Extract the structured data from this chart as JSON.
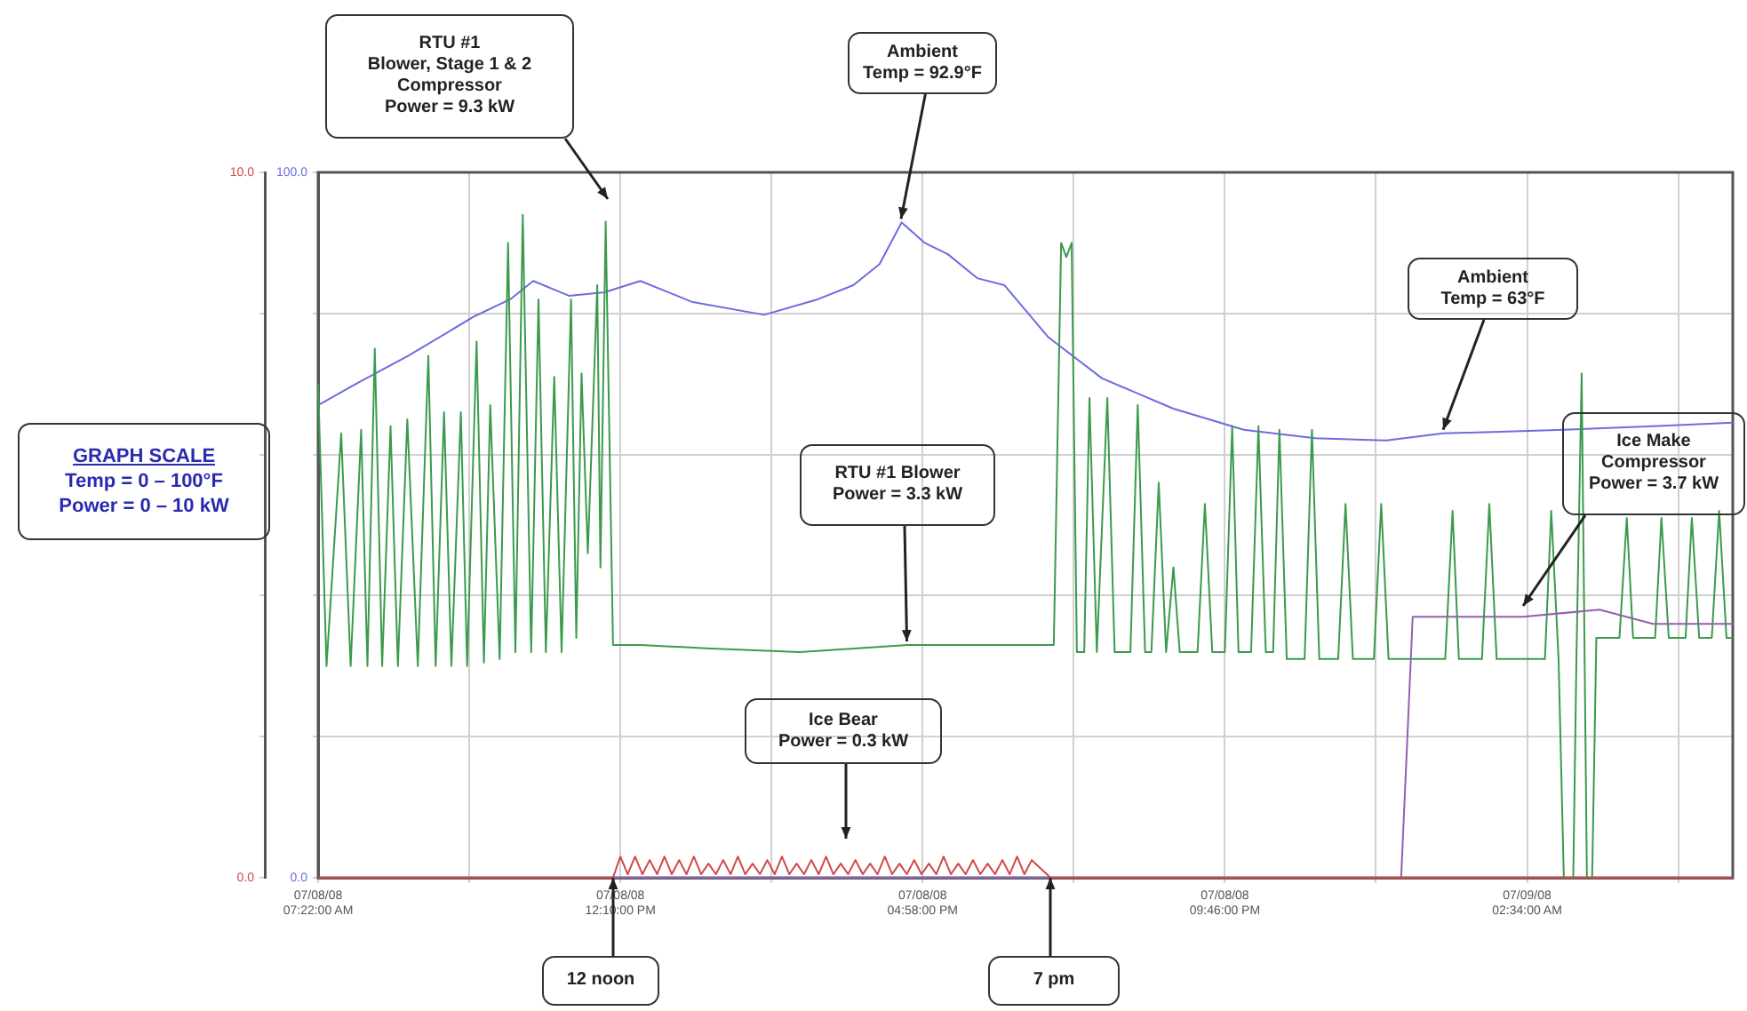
{
  "chart_data": {
    "type": "line",
    "xlim": [
      "--07-08T07:22",
      "--07-09T05:50"
    ],
    "xticks": [
      {
        "value": "--07-08T07:22",
        "label": "07/08/08\n07:22:00 AM"
      },
      {
        "value": "--07-08T09:46",
        "label": null
      },
      {
        "value": "--07-08T12:10",
        "label": "07/08/08\n12:10:00 PM"
      },
      {
        "value": "--07-08T14:34",
        "label": null
      },
      {
        "value": "--07-08T16:58",
        "label": "07/08/08\n04:58:00 PM"
      },
      {
        "value": "--07-08T19:22",
        "label": null
      },
      {
        "value": "--07-08T21:46",
        "label": "07/08/08\n09:46:00 PM"
      },
      {
        "value": "--07-09T00:10",
        "label": null
      },
      {
        "value": "--07-09T02:34",
        "label": "07/09/08\n02:34:00 AM"
      },
      {
        "value": "--07-09T04:58",
        "label": null
      }
    ],
    "ylim": [
      0,
      100
    ],
    "yticks": [
      {
        "value": 0,
        "label": "0.0"
      },
      {
        "value": 20,
        "label": null
      },
      {
        "value": 40,
        "label": null
      },
      {
        "value": 60,
        "label": null
      },
      {
        "value": 80,
        "label": null
      },
      {
        "value": 100,
        "label": "100.0"
      }
    ],
    "y2lim": [
      0,
      10
    ],
    "y2ticks": [
      {
        "value": 0,
        "label": "0.0"
      },
      {
        "value": 2,
        "label": null
      },
      {
        "value": 4,
        "label": null
      },
      {
        "value": 6,
        "label": null
      },
      {
        "value": 8,
        "label": null
      },
      {
        "value": 10,
        "label": "10.0"
      }
    ],
    "grid": true,
    "legend": false,
    "marker": "none",
    "line_style": "solid",
    "series": [
      {
        "color": "#d04848",
        "axis": "y2",
        "x": [
          "--07-08T07:22",
          "--07-08T12:03",
          "--07-08T12:10",
          "--07-08T12:17",
          "--07-08T12:24",
          "--07-08T12:31",
          "--07-08T12:38",
          "--07-08T12:45",
          "--07-08T12:52",
          "--07-08T12:59",
          "--07-08T13:06",
          "--07-08T13:13",
          "--07-08T13:20",
          "--07-08T13:27",
          "--07-08T13:34",
          "--07-08T13:41",
          "--07-08T13:48",
          "--07-08T13:55",
          "--07-08T14:02",
          "--07-08T14:09",
          "--07-08T14:16",
          "--07-08T14:23",
          "--07-08T14:30",
          "--07-08T14:37",
          "--07-08T14:44",
          "--07-08T14:51",
          "--07-08T14:58",
          "--07-08T15:05",
          "--07-08T15:12",
          "--07-08T15:19",
          "--07-08T15:26",
          "--07-08T15:33",
          "--07-08T15:40",
          "--07-08T15:47",
          "--07-08T15:54",
          "--07-08T16:01",
          "--07-08T16:08",
          "--07-08T16:15",
          "--07-08T16:22",
          "--07-08T16:29",
          "--07-08T16:36",
          "--07-08T16:43",
          "--07-08T16:50",
          "--07-08T16:57",
          "--07-08T17:04",
          "--07-08T17:11",
          "--07-08T17:18",
          "--07-08T17:25",
          "--07-08T17:32",
          "--07-08T17:39",
          "--07-08T17:46",
          "--07-08T17:53",
          "--07-08T18:00",
          "--07-08T18:07",
          "--07-08T18:14",
          "--07-08T18:21",
          "--07-08T18:28",
          "--07-08T18:35",
          "--07-08T18:42",
          "--07-08T19:00",
          "--07-09T05:50"
        ],
        "values": [
          0,
          0,
          0.3,
          0.05,
          0.3,
          0.05,
          0.25,
          0.05,
          0.3,
          0.05,
          0.25,
          0.05,
          0.3,
          0.05,
          0.2,
          0.05,
          0.25,
          0.05,
          0.3,
          0.05,
          0.2,
          0.05,
          0.25,
          0.05,
          0.3,
          0.05,
          0.2,
          0.05,
          0.25,
          0.05,
          0.3,
          0.05,
          0.2,
          0.05,
          0.25,
          0.05,
          0.2,
          0.05,
          0.3,
          0.05,
          0.2,
          0.05,
          0.25,
          0.05,
          0.2,
          0.05,
          0.3,
          0.05,
          0.2,
          0.05,
          0.25,
          0.05,
          0.2,
          0.05,
          0.25,
          0.05,
          0.3,
          0.05,
          0.25,
          0,
          0
        ]
      },
      {
        "color": "#9060b0",
        "axis": "y2",
        "x": [
          "--07-08T07:22",
          "--07-09T00:34",
          "--07-09T00:45",
          "--07-09T02:30",
          "--07-09T03:43",
          "--07-09T04:34",
          "--07-09T05:50"
        ],
        "values": [
          0,
          0,
          3.7,
          3.7,
          3.8,
          3.6,
          3.6
        ]
      },
      {
        "color": "#3c9a4c",
        "axis": "y2",
        "x": [
          "--07-08T07:22",
          "--07-08T07:30",
          "--07-08T07:44",
          "--07-08T07:53",
          "--07-08T08:03",
          "--07-08T08:09",
          "--07-08T08:16",
          "--07-08T08:23",
          "--07-08T08:31",
          "--07-08T08:38",
          "--07-08T08:47",
          "--07-08T08:57",
          "--07-08T09:07",
          "--07-08T09:14",
          "--07-08T09:22",
          "--07-08T09:29",
          "--07-08T09:38",
          "--07-08T09:44",
          "--07-08T09:53",
          "--07-08T10:00",
          "--07-08T10:06",
          "--07-08T10:15",
          "--07-08T10:23",
          "--07-08T10:30",
          "--07-08T10:37",
          "--07-08T10:45",
          "--07-08T10:52",
          "--07-08T10:59",
          "--07-08T11:07",
          "--07-08T11:14",
          "--07-08T11:23",
          "--07-08T11:28",
          "--07-08T11:33",
          "--07-08T11:39",
          "--07-08T11:48",
          "--07-08T11:51",
          "--07-08T11:56",
          "--07-08T12:03",
          "--07-08T12:29",
          "--07-08T13:36",
          "--07-08T15:01",
          "--07-08T16:43",
          "--07-08T18:07",
          "--07-08T19:03",
          "--07-08T19:10",
          "--07-08T19:15",
          "--07-08T19:20",
          "--07-08T19:25",
          "--07-08T19:32",
          "--07-08T19:37",
          "--07-08T19:44",
          "--07-08T19:54",
          "--07-08T20:01",
          "--07-08T20:16",
          "--07-08T20:23",
          "--07-08T20:30",
          "--07-08T20:36",
          "--07-08T20:43",
          "--07-08T20:50",
          "--07-08T20:57",
          "--07-08T21:03",
          "--07-08T21:20",
          "--07-08T21:27",
          "--07-08T21:34",
          "--07-08T21:46",
          "--07-08T21:53",
          "--07-08T21:59",
          "--07-08T22:11",
          "--07-08T22:18",
          "--07-08T22:25",
          "--07-08T22:32",
          "--07-08T22:38",
          "--07-08T22:45",
          "--07-08T23:02",
          "--07-08T23:09",
          "--07-08T23:16",
          "--07-08T23:34",
          "--07-08T23:41",
          "--07-08T23:48",
          "--07-09T00:08",
          "--07-09T00:15",
          "--07-09T00:22",
          "--07-09T01:16",
          "--07-09T01:23",
          "--07-09T01:29",
          "--07-09T01:51",
          "--07-09T01:58",
          "--07-09T02:05",
          "--07-09T02:51",
          "--07-09T02:57",
          "--07-09T03:04",
          "--07-09T03:09",
          "--07-09T03:18",
          "--07-09T03:21",
          "--07-09T03:26",
          "--07-09T03:31",
          "--07-09T03:36",
          "--07-09T03:40",
          "--07-09T04:02",
          "--07-09T04:09",
          "--07-09T04:15",
          "--07-09T04:36",
          "--07-09T04:42",
          "--07-09T04:49",
          "--07-09T05:05",
          "--07-09T05:11",
          "--07-09T05:18",
          "--07-09T05:30",
          "--07-09T05:37",
          "--07-09T05:44",
          "--07-09T05:50"
        ],
        "values": [
          7.0,
          3.0,
          6.3,
          3.0,
          6.35,
          3.0,
          7.5,
          3.0,
          6.4,
          3.0,
          6.5,
          3.0,
          7.4,
          3.0,
          6.6,
          3.0,
          6.6,
          3.0,
          7.6,
          3.05,
          6.7,
          3.1,
          9.0,
          3.2,
          9.4,
          3.2,
          8.2,
          3.2,
          7.1,
          3.2,
          8.2,
          3.4,
          7.15,
          4.6,
          8.4,
          4.4,
          9.3,
          3.3,
          3.3,
          3.25,
          3.2,
          3.3,
          3.3,
          3.3,
          9.0,
          8.8,
          9.0,
          3.2,
          3.2,
          6.8,
          3.2,
          6.8,
          3.2,
          3.2,
          6.7,
          3.2,
          3.2,
          5.6,
          3.2,
          4.4,
          3.2,
          3.2,
          5.3,
          3.2,
          3.2,
          6.4,
          3.2,
          3.2,
          6.4,
          3.2,
          3.2,
          6.35,
          3.1,
          3.1,
          6.35,
          3.1,
          3.1,
          5.3,
          3.1,
          3.1,
          5.3,
          3.1,
          3.1,
          5.2,
          3.1,
          3.1,
          5.3,
          3.1,
          3.1,
          5.2,
          3.1,
          0,
          0,
          3.1,
          7.15,
          0,
          0,
          3.4,
          3.4,
          5.1,
          3.4,
          3.4,
          5.1,
          3.4,
          3.4,
          5.1,
          3.4,
          3.4,
          5.2,
          3.4,
          3.4
        ]
      },
      {
        "color": "#6c6ce0",
        "axis": "y",
        "x": [
          "--07-08T07:22",
          "--07-08T07:58",
          "--07-08T08:48",
          "--07-08T09:51",
          "--07-08T10:25",
          "--07-08T10:47",
          "--07-08T11:21",
          "--07-08T11:55",
          "--07-08T12:29",
          "--07-08T13:19",
          "--07-08T14:27",
          "--07-08T15:18",
          "--07-08T15:52",
          "--07-08T16:17",
          "--07-08T16:38",
          "--07-08T17:00",
          "--07-08T17:22",
          "--07-08T17:50",
          "--07-08T18:16",
          "--07-08T18:58",
          "--07-08T19:49",
          "--07-08T20:57",
          "--07-08T22:04",
          "--07-08T23:12",
          "--07-09T00:20",
          "--07-09T01:14",
          "--07-09T02:02",
          "--07-09T03:09",
          "--07-09T04:34",
          "--07-09T05:50"
        ],
        "values": [
          67,
          70,
          74,
          79.6,
          82,
          84.6,
          82.5,
          83,
          84.6,
          81.6,
          79.8,
          82,
          84,
          87,
          92.9,
          90,
          88.4,
          85,
          84,
          76.6,
          70.8,
          66.5,
          63.5,
          62.3,
          62,
          63,
          63.2,
          63.5,
          64,
          64.5
        ]
      }
    ],
    "annotations": [
      "RTU #1\nBlower, Stage 1 & 2\nCompressor\nPower = 9.3 kW",
      {
        "text": "Ambient\nTemp = 92.9°F",
        "x": "--07-08T16:38",
        "y": 92.9
      },
      {
        "text": "Ambient\nTemp = 63°F",
        "x": "--07-09T01:14",
        "y": 63
      },
      {
        "text": "RTU #1 Blower\nPower = 3.3 kW",
        "x": "--07-08T16:43"
      },
      "Ice Make\nCompressor\nPower = 3.7 kW",
      "Ice Bear\nPower = 0.3 kW",
      "12 noon",
      "7 pm",
      "GRAPH SCALE\nTemp = 0 – 100°F\nPower = 0 – 10 kW"
    ]
  }
}
